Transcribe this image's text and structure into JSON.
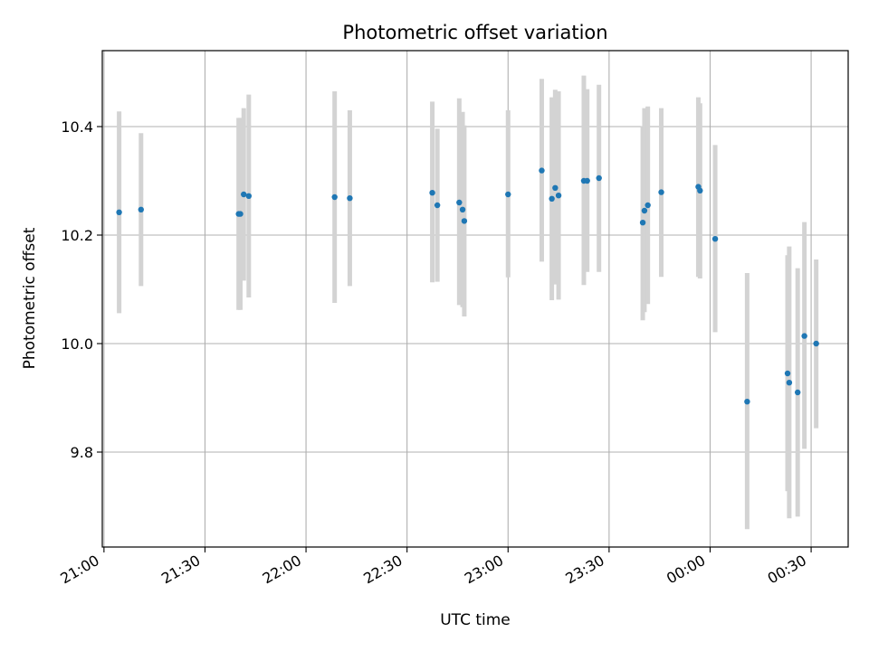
{
  "chart_data": {
    "type": "scatter",
    "title": "Photometric offset variation",
    "xlabel": "UTC time",
    "ylabel": "Photometric offset",
    "x_ticks": [
      "21:00",
      "21:30",
      "22:00",
      "22:30",
      "23:00",
      "23:30",
      "00:00",
      "00:30"
    ],
    "y_ticks": [
      "9.8",
      "10.0",
      "10.2",
      "10.4"
    ],
    "y_tick_values": [
      9.8,
      10.0,
      10.2,
      10.4
    ],
    "xlim": [
      "20:59:30",
      "00:41:00"
    ],
    "ylim": [
      9.625,
      10.54
    ],
    "grid": true,
    "colors": {
      "point": "#1f77b4",
      "errorbar": "#d3d3d3"
    },
    "points": [
      {
        "time": "21:04:30",
        "y": 10.242,
        "ylow": 10.056,
        "yhigh": 10.428
      },
      {
        "time": "21:11:00",
        "y": 10.247,
        "ylow": 10.106,
        "yhigh": 10.388
      },
      {
        "time": "21:40:00",
        "y": 10.239,
        "ylow": 10.062,
        "yhigh": 10.416
      },
      {
        "time": "21:40:30",
        "y": 10.239,
        "ylow": 10.062,
        "yhigh": 10.416
      },
      {
        "time": "21:41:30",
        "y": 10.275,
        "ylow": 10.116,
        "yhigh": 10.434
      },
      {
        "time": "21:43:00",
        "y": 10.272,
        "ylow": 10.085,
        "yhigh": 10.459
      },
      {
        "time": "22:08:30",
        "y": 10.27,
        "ylow": 10.075,
        "yhigh": 10.465
      },
      {
        "time": "22:13:00",
        "y": 10.268,
        "ylow": 10.106,
        "yhigh": 10.43
      },
      {
        "time": "22:37:30",
        "y": 10.278,
        "ylow": 10.113,
        "yhigh": 10.446
      },
      {
        "time": "22:39:00",
        "y": 10.255,
        "ylow": 10.114,
        "yhigh": 10.396
      },
      {
        "time": "22:45:30",
        "y": 10.26,
        "ylow": 10.071,
        "yhigh": 10.452
      },
      {
        "time": "22:46:30",
        "y": 10.247,
        "ylow": 10.067,
        "yhigh": 10.427
      },
      {
        "time": "22:47:00",
        "y": 10.226,
        "ylow": 10.05,
        "yhigh": 10.402
      },
      {
        "time": "23:00:00",
        "y": 10.275,
        "ylow": 10.122,
        "yhigh": 10.43
      },
      {
        "time": "23:10:00",
        "y": 10.319,
        "ylow": 10.151,
        "yhigh": 10.488
      },
      {
        "time": "23:13:00",
        "y": 10.267,
        "ylow": 10.08,
        "yhigh": 10.454
      },
      {
        "time": "23:14:00",
        "y": 10.287,
        "ylow": 10.109,
        "yhigh": 10.468
      },
      {
        "time": "23:15:00",
        "y": 10.273,
        "ylow": 10.081,
        "yhigh": 10.465
      },
      {
        "time": "23:22:30",
        "y": 10.3,
        "ylow": 10.108,
        "yhigh": 10.494
      },
      {
        "time": "23:23:30",
        "y": 10.3,
        "ylow": 10.132,
        "yhigh": 10.469
      },
      {
        "time": "23:27:00",
        "y": 10.305,
        "ylow": 10.132,
        "yhigh": 10.477
      },
      {
        "time": "23:40:00",
        "y": 10.223,
        "ylow": 10.043,
        "yhigh": 10.401
      },
      {
        "time": "23:40:30",
        "y": 10.245,
        "ylow": 10.058,
        "yhigh": 10.434
      },
      {
        "time": "23:41:30",
        "y": 10.255,
        "ylow": 10.073,
        "yhigh": 10.437
      },
      {
        "time": "23:45:30",
        "y": 10.279,
        "ylow": 10.123,
        "yhigh": 10.434
      },
      {
        "time": "23:56:30",
        "y": 10.289,
        "ylow": 10.123,
        "yhigh": 10.454
      },
      {
        "time": "23:57:00",
        "y": 10.282,
        "ylow": 10.12,
        "yhigh": 10.443
      },
      {
        "time": "00:01:30",
        "y": 10.193,
        "ylow": 10.021,
        "yhigh": 10.366
      },
      {
        "time": "00:11:00",
        "y": 9.893,
        "ylow": 9.658,
        "yhigh": 10.13
      },
      {
        "time": "00:23:00",
        "y": 9.945,
        "ylow": 9.728,
        "yhigh": 10.163
      },
      {
        "time": "00:23:30",
        "y": 9.928,
        "ylow": 9.678,
        "yhigh": 10.179
      },
      {
        "time": "00:26:00",
        "y": 9.91,
        "ylow": 9.681,
        "yhigh": 10.139
      },
      {
        "time": "00:28:00",
        "y": 10.014,
        "ylow": 9.806,
        "yhigh": 10.224
      },
      {
        "time": "00:31:30",
        "y": 10.0,
        "ylow": 9.844,
        "yhigh": 10.155
      }
    ]
  }
}
